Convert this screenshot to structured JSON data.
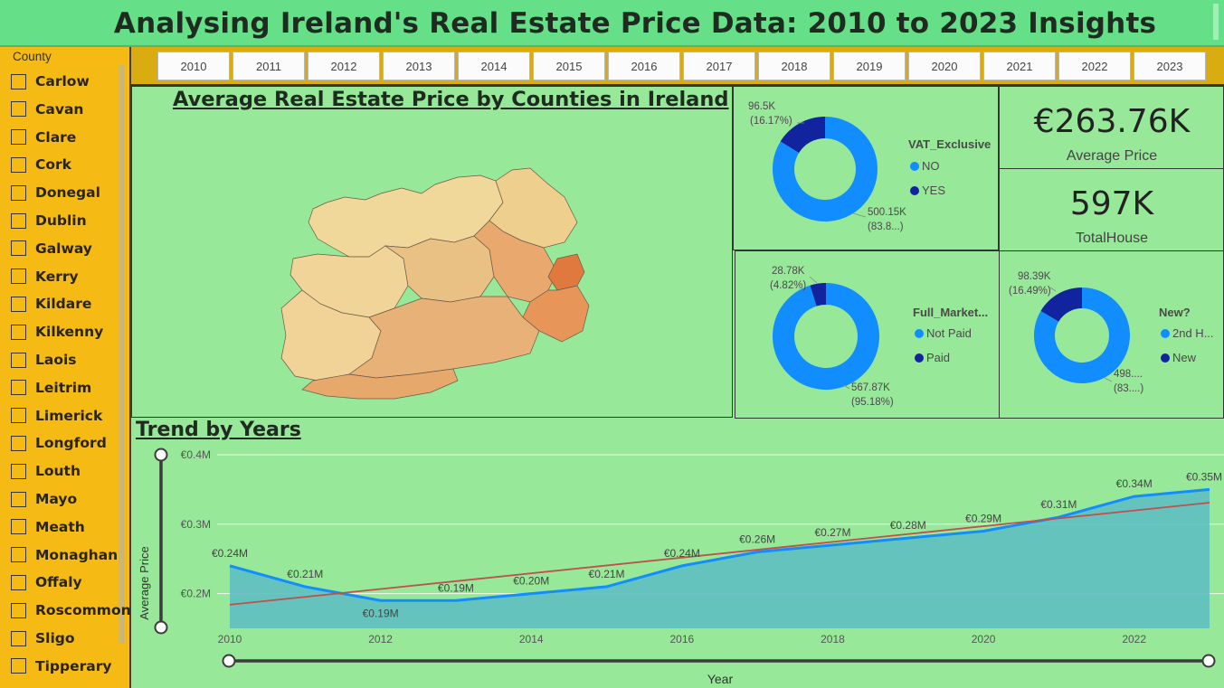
{
  "header": {
    "title": "Analysing Ireland's Real Estate Price Data: 2010 to 2023 Insights"
  },
  "slicer": {
    "title": "County",
    "items": [
      "Carlow",
      "Cavan",
      "Clare",
      "Cork",
      "Donegal",
      "Dublin",
      "Galway",
      "Kerry",
      "Kildare",
      "Kilkenny",
      "Laois",
      "Leitrim",
      "Limerick",
      "Longford",
      "Louth",
      "Mayo",
      "Meath",
      "Monaghan",
      "Offaly",
      "Roscommon",
      "Sligo",
      "Tipperary"
    ]
  },
  "years": [
    "2010",
    "2011",
    "2012",
    "2013",
    "2014",
    "2015",
    "2016",
    "2017",
    "2018",
    "2019",
    "2020",
    "2021",
    "2022",
    "2023"
  ],
  "map": {
    "title": "Average Real Estate Price by Counties in Ireland"
  },
  "kpis": {
    "average_price": {
      "value": "€263.76K",
      "label": "Average Price"
    },
    "total_house": {
      "value": "597K",
      "label": "TotalHouse"
    }
  },
  "colors": {
    "primary": "#118dff",
    "secondary": "#12239e",
    "trend": "#c0504d",
    "area": "#5fbfc2"
  },
  "donuts": {
    "vat": {
      "legend_title": "VAT_Exclusive",
      "legend": [
        "NO",
        "YES"
      ],
      "values": [
        500.15,
        96.5
      ],
      "small_label": [
        "96.5K",
        "(16.17%)"
      ],
      "large_label": [
        "500.15K",
        "(83.8...)"
      ]
    },
    "market": {
      "legend_title": "Full_Market...",
      "legend": [
        "Not Paid",
        "Paid"
      ],
      "values": [
        567.87,
        28.78
      ],
      "small_label": [
        "28.78K",
        "(4.82%)"
      ],
      "large_label": [
        "567.87K",
        "(95.18%)"
      ]
    },
    "new": {
      "legend_title": "New?",
      "legend": [
        "2nd H...",
        "New"
      ],
      "values": [
        498,
        98.39
      ],
      "small_label": [
        "98.39K",
        "(16.49%)"
      ],
      "large_label": [
        "498....",
        "(83....)"
      ]
    }
  },
  "trend": {
    "title": "Trend by Years"
  },
  "chart_data": {
    "type": "area",
    "title": "Trend by Years",
    "xlabel": "Year",
    "ylabel": "Average Price",
    "x": [
      2010,
      2011,
      2012,
      2013,
      2014,
      2015,
      2016,
      2017,
      2018,
      2019,
      2020,
      2021,
      2022,
      2023
    ],
    "series": [
      {
        "values": [
          0.24,
          0.21,
          0.19,
          0.19,
          0.2,
          0.21,
          0.24,
          0.26,
          0.27,
          0.28,
          0.29,
          0.31,
          0.34,
          0.35
        ]
      }
    ],
    "labels": [
      "€0.24M",
      "€0.21M",
      "€0.19M",
      "€0.19M",
      "€0.20M",
      "€0.21M",
      "€0.24M",
      "€0.26M",
      "€0.27M",
      "€0.28M",
      "€0.29M",
      "€0.31M",
      "€0.34M",
      "€0.35M"
    ],
    "trend_line": {
      "start": 0.184,
      "end": 0.331
    },
    "ylim": [
      0.15,
      0.4
    ],
    "yticks": [
      0.2,
      0.3,
      0.4
    ],
    "ytick_labels": [
      "€0.2M",
      "€0.3M",
      "€0.4M"
    ],
    "xticks": [
      2010,
      2012,
      2014,
      2016,
      2018,
      2020,
      2022
    ],
    "grid": true
  }
}
